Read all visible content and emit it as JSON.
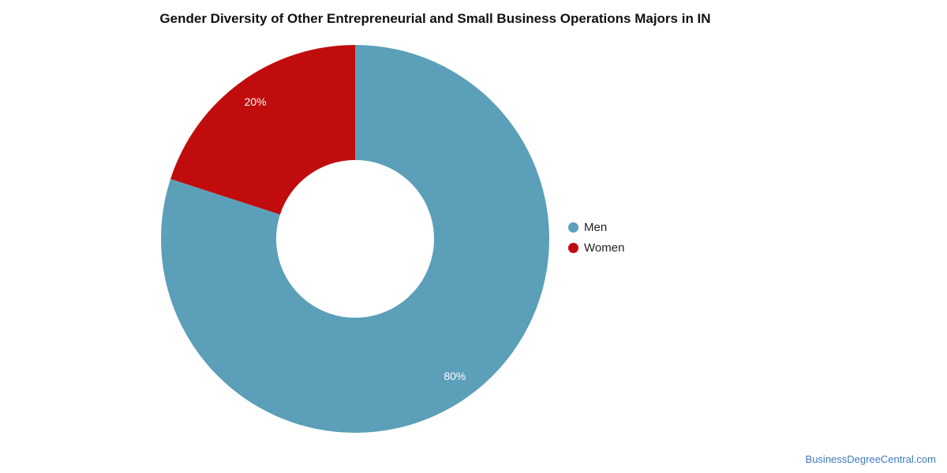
{
  "page": {
    "watermark": "BusinessDegreeCentral.com",
    "watermark_color": "#3D7AB8"
  },
  "chart_data": {
    "type": "pie",
    "donut": true,
    "title": "Gender Diversity of Other Entrepreneurial and Small Business Operations Majors in IN",
    "start_angle_deg": 0,
    "direction": "clockwise",
    "legend_position": "right",
    "slice_label_color": "#FFFFFF",
    "series": [
      {
        "name": "Men",
        "value": 80,
        "label": "80%",
        "color": "#5B9FB9"
      },
      {
        "name": "Women",
        "value": 20,
        "label": "20%",
        "color": "#C00C0D"
      }
    ]
  }
}
